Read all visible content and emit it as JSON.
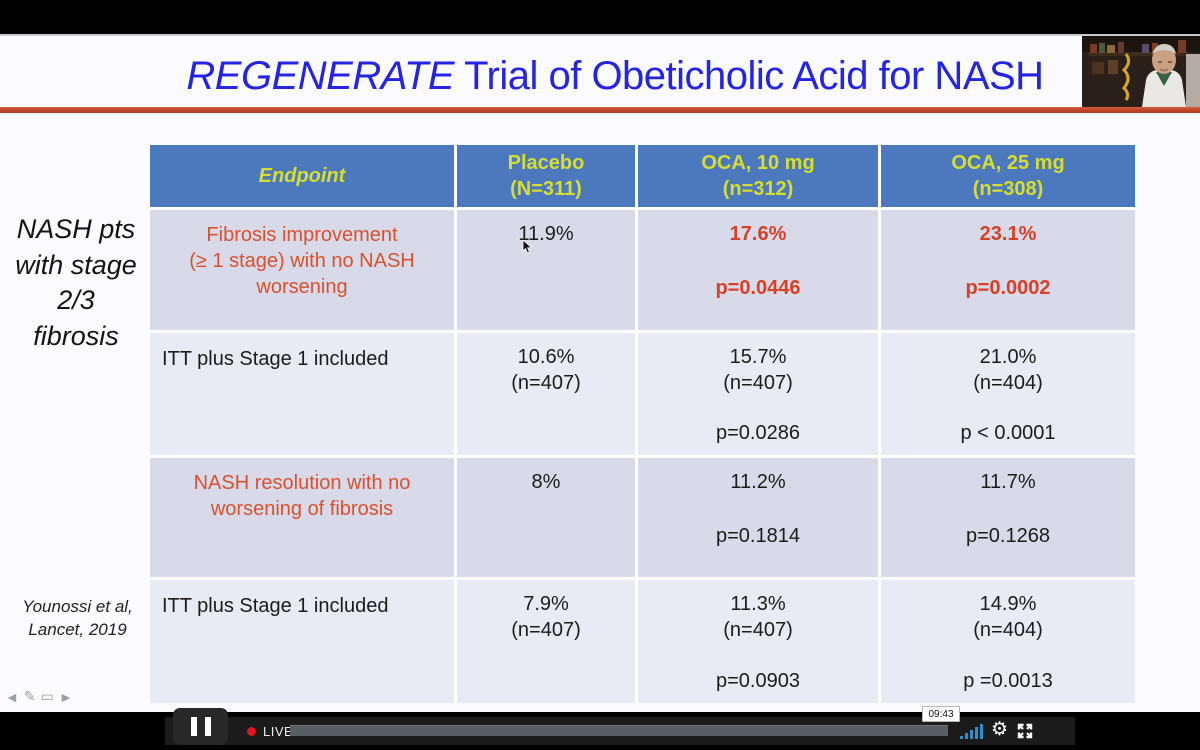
{
  "colors": {
    "title_blue": "#2524e4",
    "red_line": "#c4472c",
    "header_bg": "#4c78bd",
    "header_text": "#d8de30",
    "row_dark": "#d8dae9",
    "row_light": "#e9ebf4",
    "highlight_orange": "#d8502d",
    "emphasis_red": "#d83f27",
    "live_red": "#e01616",
    "volume_blue": "#2e8fd0"
  },
  "slide": {
    "title": {
      "italic_part": "REGENERATE",
      "rest": "Trial of Obeticholic Acid for NASH"
    },
    "side_label": "NASH pts\nwith stage\n2/3\nfibrosis",
    "citation": "Younossi et al,\nLancet, 2019",
    "nav": {
      "prev": "◄",
      "annotate": "✎",
      "menu": "▭",
      "next": "►"
    },
    "table": {
      "header": [
        "Endpoint",
        "Placebo\n(N=311)",
        "OCA, 10 mg\n(n=312)",
        "OCA, 25 mg\n(n=308)"
      ],
      "rows": [
        {
          "endpoint": "Fibrosis improvement\n(≥ 1 stage) with no NASH\nworsening",
          "endpoint_style": "highlight",
          "cells": [
            {
              "value": "11.9%",
              "n": "",
              "p": "",
              "emphasis": false
            },
            {
              "value": "17.6%",
              "n": "",
              "p": "p=0.0446",
              "emphasis": true
            },
            {
              "value": "23.1%",
              "n": "",
              "p": "p=0.0002",
              "emphasis": true
            }
          ]
        },
        {
          "endpoint": "ITT plus Stage 1 included",
          "endpoint_style": "plain",
          "cells": [
            {
              "value": "10.6%",
              "n": "(n=407)",
              "p": "",
              "emphasis": false
            },
            {
              "value": "15.7%",
              "n": "(n=407)",
              "p": "p=0.0286",
              "emphasis": false
            },
            {
              "value": "21.0%",
              "n": "(n=404)",
              "p": "p < 0.0001",
              "emphasis": false
            }
          ]
        },
        {
          "endpoint": "NASH resolution with no\nworsening of fibrosis",
          "endpoint_style": "highlight",
          "cells": [
            {
              "value": "8%",
              "n": "",
              "p": "",
              "emphasis": false
            },
            {
              "value": "11.2%",
              "n": "",
              "p": "p=0.1814",
              "emphasis": false
            },
            {
              "value": "11.7%",
              "n": "",
              "p": "p=0.1268",
              "emphasis": false
            }
          ]
        },
        {
          "endpoint": "ITT plus Stage 1 included",
          "endpoint_style": "plain",
          "cells": [
            {
              "value": "7.9%",
              "n": "(n=407)",
              "p": "",
              "emphasis": false
            },
            {
              "value": "11.3%",
              "n": "(n=407)",
              "p": "p=0.0903",
              "emphasis": false
            },
            {
              "value": "14.9%",
              "n": "(n=404)",
              "p": "p =0.0013",
              "emphasis": false
            }
          ]
        }
      ]
    }
  },
  "player": {
    "live_label": "LIVE",
    "time_tooltip": "09:43",
    "icons": {
      "pause": "pause-icon",
      "volume": "volume-bars-icon",
      "settings": "gear-icon",
      "settings_glyph": "⚙",
      "fullscreen": "fullscreen-icon"
    }
  }
}
